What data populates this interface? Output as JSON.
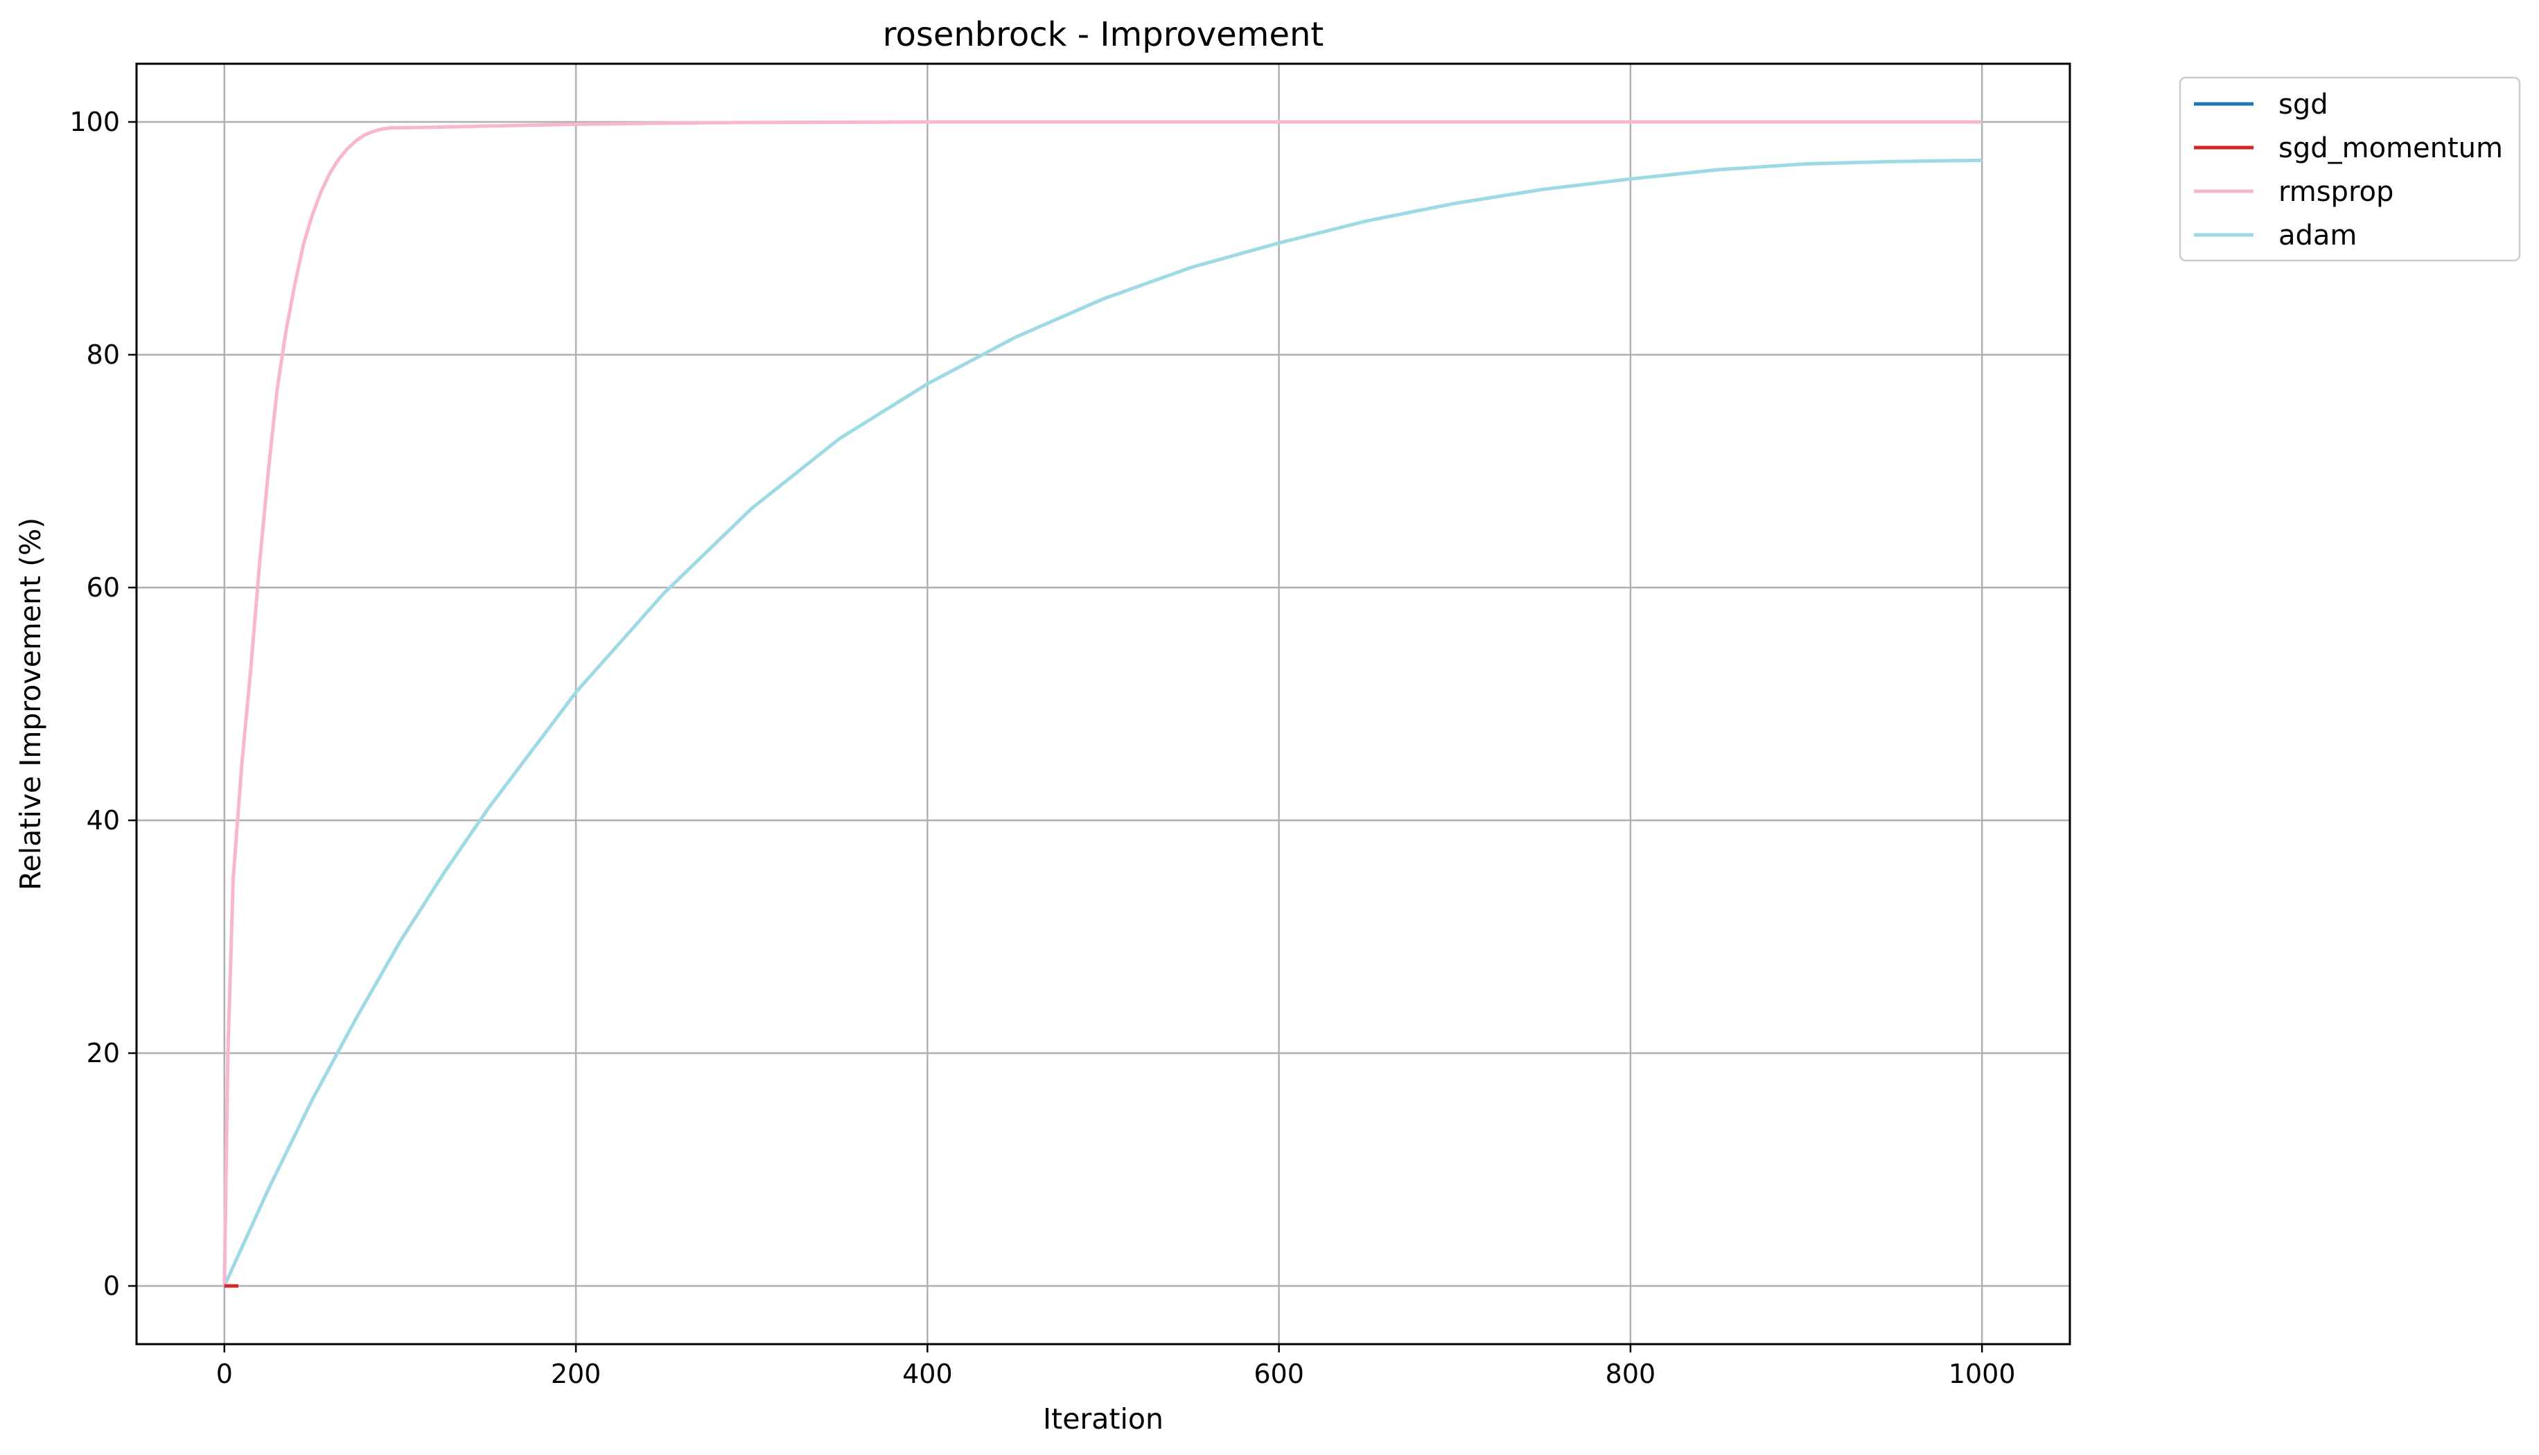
{
  "chart_data": {
    "type": "line",
    "title": "rosenbrock - Improvement",
    "xlabel": "Iteration",
    "ylabel": "Relative Improvement (%)",
    "xlim": [
      -50,
      1050
    ],
    "ylim": [
      -5,
      105
    ],
    "xticks": [
      0,
      200,
      400,
      600,
      800,
      1000
    ],
    "yticks": [
      0,
      20,
      40,
      60,
      80,
      100
    ],
    "grid": true,
    "legend_position": "outside-top-right",
    "series": [
      {
        "name": "sgd",
        "color": "#1f77b4",
        "x": [
          0,
          5
        ],
        "y": [
          0,
          0
        ]
      },
      {
        "name": "sgd_momentum",
        "color": "#d62728",
        "x": [
          0,
          8
        ],
        "y": [
          0,
          0
        ]
      },
      {
        "name": "rmsprop",
        "color": "#f7b6d2",
        "x": [
          0,
          2,
          5,
          10,
          15,
          20,
          25,
          30,
          35,
          40,
          45,
          50,
          55,
          60,
          65,
          70,
          75,
          80,
          85,
          90,
          95,
          100,
          120,
          150,
          200,
          250,
          300,
          400,
          500,
          600,
          700,
          800,
          900,
          1000
        ],
        "y": [
          0,
          20,
          35,
          45,
          53,
          62,
          70,
          77,
          82,
          86,
          89.5,
          92,
          94,
          95.6,
          96.8,
          97.7,
          98.4,
          98.9,
          99.2,
          99.4,
          99.5,
          99.5,
          99.55,
          99.65,
          99.8,
          99.9,
          99.95,
          100,
          100,
          100,
          100,
          100,
          100,
          100
        ]
      },
      {
        "name": "adam",
        "color": "#9edae5",
        "x": [
          0,
          25,
          50,
          75,
          100,
          125,
          150,
          175,
          200,
          250,
          300,
          350,
          400,
          450,
          500,
          550,
          600,
          650,
          700,
          750,
          800,
          850,
          900,
          950,
          1000
        ],
        "y": [
          0,
          8.3,
          16,
          23,
          29.6,
          35.5,
          41,
          46,
          51,
          59.5,
          66.8,
          72.8,
          77.5,
          81.5,
          84.8,
          87.5,
          89.6,
          91.5,
          93,
          94.2,
          95.1,
          95.9,
          96.4,
          96.6,
          96.7
        ]
      }
    ]
  }
}
